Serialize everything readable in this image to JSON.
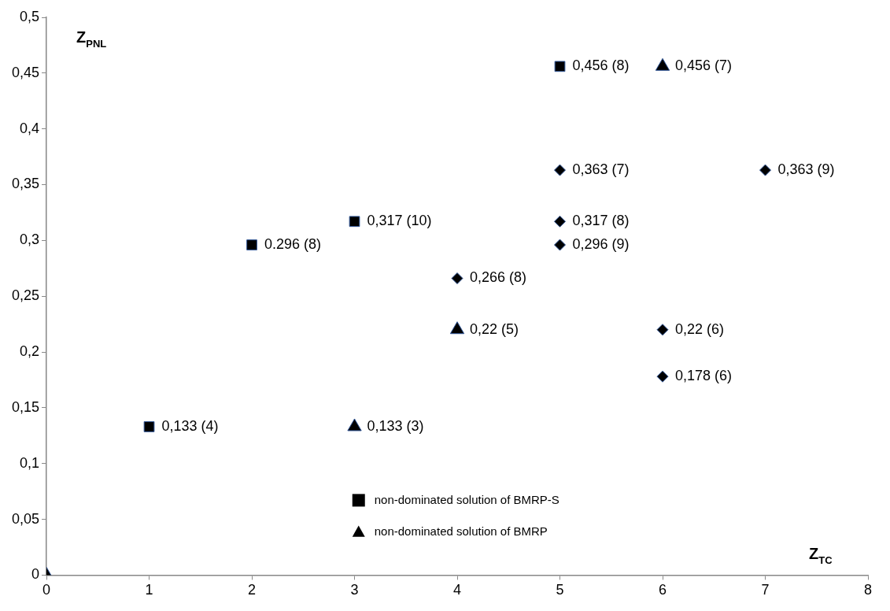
{
  "chart_data": {
    "type": "scatter",
    "xlabel": "Z$_{TC}$",
    "ylabel": "Z$_{PNL}$",
    "xlim": [
      0,
      8
    ],
    "xticks": [
      0,
      1,
      2,
      3,
      4,
      5,
      6,
      7,
      8
    ],
    "ylim": [
      0,
      0.5
    ],
    "yticks": [
      {
        "value": 0,
        "label": "0"
      },
      {
        "value": 0.05,
        "label": "0,05"
      },
      {
        "value": 0.1,
        "label": "0,1"
      },
      {
        "value": 0.15,
        "label": "0,15"
      },
      {
        "value": 0.2,
        "label": "0,2"
      },
      {
        "value": 0.25,
        "label": "0,25"
      },
      {
        "value": 0.3,
        "label": "0,3"
      },
      {
        "value": 0.35,
        "label": "0,35"
      },
      {
        "value": 0.4,
        "label": "0,4"
      },
      {
        "value": 0.45,
        "label": "0,45"
      },
      {
        "value": 0.5,
        "label": "0,5"
      }
    ],
    "grid": false,
    "legend": "bottom",
    "series": [
      {
        "name": "non-dominated solution of BMRP-S",
        "color": "#000000",
        "marker": "square",
        "x": [
          1,
          2,
          3,
          5
        ],
        "values": [
          0.133,
          0.296,
          0.317,
          0.456
        ],
        "value_labels": [
          "0,133 (4)",
          "0.296 (8)",
          "0,317 (10)",
          "0,456 (8)"
        ]
      },
      {
        "name": "non-dominated solution of BMRP",
        "color": "#000000",
        "marker": "triangle",
        "x": [
          0,
          3,
          4,
          6
        ],
        "values": [
          0,
          0.133,
          0.22,
          0.456
        ],
        "value_labels": [
          null,
          "0,133 (3)",
          "0,22 (5)",
          "0,456 (7)"
        ]
      },
      {
        "color": "#000000",
        "marker": "diamond",
        "x": [
          4,
          5,
          5,
          5,
          6,
          6,
          7
        ],
        "values": [
          0.266,
          0.296,
          0.317,
          0.363,
          0.178,
          0.22,
          0.363
        ],
        "value_labels": [
          "0,266 (8)",
          "0,296 (9)",
          "0,317 (8)",
          "0,363 (7)",
          "0,178 (6)",
          "0,22 (6)",
          "0,363 (9)"
        ]
      }
    ]
  }
}
